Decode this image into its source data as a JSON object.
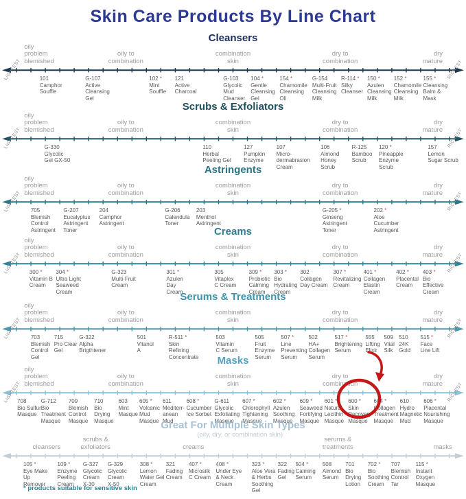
{
  "page": {
    "footnote": "* products suitable for sensitive skin",
    "footnote_color": "#2f8095",
    "title_color": "#2c3a92"
  },
  "annotation": {
    "color": "#c41818",
    "circled_product": "600 * Skin Recovery Masque"
  },
  "chart_data": {
    "type": "scatter",
    "title": "Skin Care Products By Line Chart",
    "axis_left_label": "LIGHTEST",
    "axis_right_label": "RICHEST",
    "legend": "products positioned along each line from lightest (left) to richest (right) formulation",
    "skin_type_labels": [
      {
        "label": "oily\nproblem\nblemished",
        "x": 5.2,
        "align": "left"
      },
      {
        "label": "oily to\ncombination",
        "x": 27,
        "align": "center"
      },
      {
        "label": "combination\nskin",
        "x": 50,
        "align": "center"
      },
      {
        "label": "dry to\ncombination",
        "x": 73,
        "align": "center"
      },
      {
        "label": "dry\nmature",
        "x": 95,
        "align": "right"
      }
    ],
    "sections": [
      {
        "id": "cleansers",
        "name": "Cleansers",
        "height": 100,
        "header_color": "#1c2f5e",
        "axis_color": "#1b394e",
        "products": [
          {
            "x": 8.5,
            "label": "101\nCamphor\nSouffle"
          },
          {
            "x": 18.3,
            "label": "G-107\nActive\nCleansing\nGel"
          },
          {
            "x": 32.0,
            "label": "102 *\nMint\nSouffle"
          },
          {
            "x": 37.5,
            "label": "121\nActive\nCharcoal"
          },
          {
            "x": 47.9,
            "label": "G-103\nGlycolic\nMud\nCleanser"
          },
          {
            "x": 53.8,
            "label": "104 *\nGentle\nCleansing\nGel"
          },
          {
            "x": 60.0,
            "label": "154 *\nChamomile\nCleansing\nOil"
          },
          {
            "x": 67.0,
            "label": "G-154\nMulti-Fruit\nCleansing\nMilk"
          },
          {
            "x": 73.2,
            "label": "R-114 *\nSilky\nCleanser"
          },
          {
            "x": 78.8,
            "label": "150 *\nAzulen\nCleansing\nMilk"
          },
          {
            "x": 84.5,
            "label": "152 *\nChamomile\nCleansing\nMilk"
          },
          {
            "x": 90.8,
            "label": "155 *\nCleansing\nBalm &\nMask"
          }
        ]
      },
      {
        "id": "scrubs-exfoliators",
        "name": "Scrubs & Exfoliators",
        "height": 92,
        "header_color": "#1d4e5c",
        "axis_color": "#205663",
        "products": [
          {
            "x": 9.5,
            "label": "G-330\nGlycolic\nGel GX-50"
          },
          {
            "x": 43.5,
            "label": "110\nHerbal\nPeeling Gel"
          },
          {
            "x": 52.3,
            "label": "127\nPumpkin\nEnzyme"
          },
          {
            "x": 59.3,
            "label": "107\nMicro-\ndermabrasion\nCream"
          },
          {
            "x": 68.8,
            "label": "106\nAlmond\nHoney\nScrub"
          },
          {
            "x": 75.5,
            "label": "R-125\nBamboo\nScrub"
          },
          {
            "x": 81.3,
            "label": "120 *\nPineapple\nEnzyme\nScrub"
          },
          {
            "x": 91.8,
            "label": "157\nLemon\nSugar Scrub"
          }
        ]
      },
      {
        "id": "astringents",
        "name": "Astringents",
        "height": 90,
        "header_color": "#2a7487",
        "axis_color": "#2c7689",
        "products": [
          {
            "x": 6.6,
            "label": "705\nBlemish\nControl\nAstringent"
          },
          {
            "x": 13.6,
            "label": "G-207\nEucalyptus\nAstringent\nToner"
          },
          {
            "x": 21.3,
            "label": "204\nCamphor\nAstringent"
          },
          {
            "x": 35.4,
            "label": "G-206\nCalendula\nToner"
          },
          {
            "x": 42.1,
            "label": "203\nMenthol\nAstringent"
          },
          {
            "x": 69.2,
            "label": "G-205 *\nGinseng\nAstringent\nToner"
          },
          {
            "x": 80.2,
            "label": "202 *\nAloe\nCucumber\nAstringent"
          }
        ]
      },
      {
        "id": "creams",
        "name": "Creams",
        "height": 95,
        "header_color": "#2e7f95",
        "axis_color": "#2f8298",
        "products": [
          {
            "x": 6.3,
            "label": "300 *\nVitamin B\nCream"
          },
          {
            "x": 12.0,
            "label": "304 *\nUltra Light\nSeaweed\nCream"
          },
          {
            "x": 23.9,
            "label": "G-323\nMulti-Fruit\nCream"
          },
          {
            "x": 35.7,
            "label": "301 *\nAzulen\nDay\nCream"
          },
          {
            "x": 46.0,
            "label": "305\nVitaplex\nC Cream"
          },
          {
            "x": 53.4,
            "label": "309 *\nProbiotic\nCalming\nCream"
          },
          {
            "x": 58.8,
            "label": "303 *\nBio\nHydrating\nCream"
          },
          {
            "x": 64.4,
            "label": "302\nCollagen\nDay Cream"
          },
          {
            "x": 71.5,
            "label": "307 *\nRevitalizing\nCream"
          },
          {
            "x": 78.0,
            "label": "401 *\nCollagen\nElastin\nCream"
          },
          {
            "x": 85.0,
            "label": "402 *\nPlacental\nCream"
          },
          {
            "x": 90.7,
            "label": "403 *\nBio\nEffective\nCream"
          }
        ]
      },
      {
        "id": "serums-treatments",
        "name": "Serums & Treatments",
        "height": 93,
        "header_color": "#3f92a8",
        "axis_color": "#4898ae",
        "products": [
          {
            "x": 6.6,
            "label": "703\nBlemish\nControl\nGel"
          },
          {
            "x": 11.6,
            "label": "715\nPro Clear\nGel"
          },
          {
            "x": 17.0,
            "label": "G-322\nAlpha\nBrigthtener"
          },
          {
            "x": 29.4,
            "label": "501\nVitanol\nA"
          },
          {
            "x": 36.2,
            "label": "R-511 *\nSkin\nRefining\nConcentrate"
          },
          {
            "x": 46.3,
            "label": "503\nVitamin\nC Serum"
          },
          {
            "x": 54.7,
            "label": "505\nFruit\nEnzyme\nSerum"
          },
          {
            "x": 60.3,
            "label": "507 *\nLine\nPreventing\nSerum"
          },
          {
            "x": 66.2,
            "label": "502\nHA+\nCollagen\nSerum"
          },
          {
            "x": 71.8,
            "label": "517 *\nBrightening\nSerum"
          },
          {
            "x": 78.4,
            "label": "555\nLifting\nElixir"
          },
          {
            "x": 82.4,
            "label": "509\nVital\nSilk"
          },
          {
            "x": 85.6,
            "label": "510\n24K\nGold"
          },
          {
            "x": 90.2,
            "label": "515 *\nFace\nLine Lift"
          }
        ]
      },
      {
        "id": "masks",
        "name": "Masks",
        "height": 94,
        "header_color": "#54a2c3",
        "axis_color": "#8cc0da",
        "products": [
          {
            "x": 3.7,
            "label": "708\nBio Sulfur\nMasque"
          },
          {
            "x": 8.8,
            "label": "G-712\nBio\nTreatment\nMasque"
          },
          {
            "x": 14.7,
            "label": "709\nBlemish\nControl\nMasque"
          },
          {
            "x": 20.2,
            "label": "710\nBio\nDrying\nMasque"
          },
          {
            "x": 25.4,
            "label": "603\nMint\nMasque"
          },
          {
            "x": 29.9,
            "label": "605 *\nVolcanic\nMud\nMasque"
          },
          {
            "x": 34.9,
            "label": "611\nMediterr-\nanean\nMud"
          },
          {
            "x": 40.0,
            "label": "608 *\nCucumber\nIce Sorbet"
          },
          {
            "x": 46.0,
            "label": "G-611\nGlycolic\nExfoliating\nMasque"
          },
          {
            "x": 52.0,
            "label": "607 *\nChlorophyll\nTightening\nMasque"
          },
          {
            "x": 58.6,
            "label": "602 *\nAzulen\nSoothing\nMasque"
          },
          {
            "x": 64.3,
            "label": "609 *\nSeaweed\nFortifying\nMasque"
          },
          {
            "x": 69.6,
            "label": "601 *\nNatural\nLecithin\nMasque"
          },
          {
            "x": 74.7,
            "label": "600 *\nSkin\nRecovery\nMasque"
          },
          {
            "x": 80.2,
            "label": "604 *\nCollagen\nTreatment\nMasque"
          },
          {
            "x": 85.8,
            "label": "610\nHydro\nMagnetic\nMud"
          },
          {
            "x": 90.9,
            "label": "606 *\nPlacental\nNourishing\nMasque"
          }
        ]
      },
      {
        "id": "multiple-skin-types",
        "name": "Great For Multiple Skin Types",
        "height": 91,
        "type": "multi",
        "header_color": "#a8c2d5",
        "axis_color": "#c3cdd3",
        "subtitle": "(oily, dry, or combination skin)",
        "subtitle_color": "#bfcbd6",
        "categories": [
          {
            "x": 10,
            "label": "cleansers"
          },
          {
            "x": 20.5,
            "label": "scrubs &\nexfoliators"
          },
          {
            "x": 41.5,
            "label": "creams"
          },
          {
            "x": 72.5,
            "label": "serums &\ntreatments"
          },
          {
            "x": 95,
            "label": "masks"
          }
        ],
        "products": [
          {
            "x": 5.0,
            "label": "105 *\nEye Make\nUp\nRemover"
          },
          {
            "x": 12.3,
            "label": "109 *\nEnzyme\nPeeling\nCream"
          },
          {
            "x": 17.8,
            "label": "G-327\nGlycolic\nCream\nX-30"
          },
          {
            "x": 23.1,
            "label": "G-329\nGlycolic\nCream\nX-50"
          },
          {
            "x": 30.0,
            "label": "308 *\nLemon\nWater Gel\nCream"
          },
          {
            "x": 35.6,
            "label": "321\nFading\nCream"
          },
          {
            "x": 40.5,
            "label": "407 *\nMicrosilk\nC Cream"
          },
          {
            "x": 46.3,
            "label": "408 *\nUnder Eye\n& Neck\nCream"
          },
          {
            "x": 54.0,
            "label": "323 *\nAloe Vera\n& Herbs\nSoothing\nGel"
          },
          {
            "x": 59.6,
            "label": "322\nFading\nGel"
          },
          {
            "x": 63.4,
            "label": "504 *\nCalming\nSerum"
          },
          {
            "x": 69.2,
            "label": "508\nAlmond\nSerum"
          },
          {
            "x": 74.1,
            "label": "701\nBio\nDrying\nLotion"
          },
          {
            "x": 78.9,
            "label": "702 *\nBio\nSoothing\nCream"
          },
          {
            "x": 83.9,
            "label": "707\nBlemish\nControl\nTar"
          },
          {
            "x": 89.2,
            "label": "115 *\nInstant\nOxygen\nMasque"
          }
        ]
      }
    ]
  }
}
